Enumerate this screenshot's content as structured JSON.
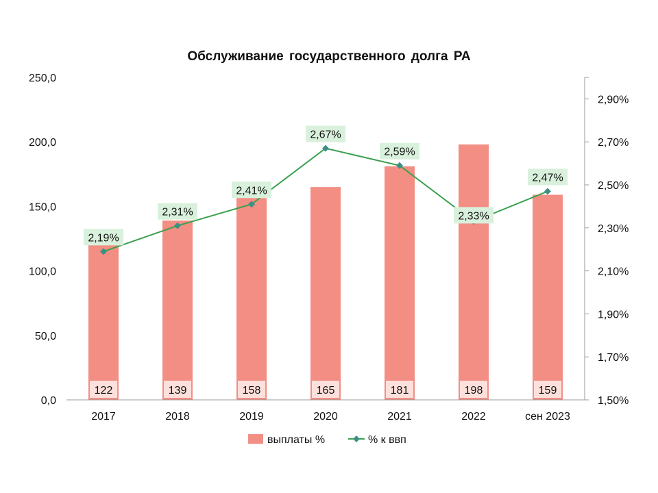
{
  "chart_data": {
    "type": "bar",
    "title": "Обслуживание  государственного  долга РА",
    "categories": [
      "2017",
      "2018",
      "2019",
      "2020",
      "2021",
      "2022",
      "сен 2023"
    ],
    "series": [
      {
        "name": "выплаты %",
        "type": "bar",
        "axis": "left",
        "values": [
          122,
          139,
          158,
          165,
          181,
          198,
          159
        ],
        "value_labels": [
          "122",
          "139",
          "158",
          "165",
          "181",
          "198",
          "159"
        ]
      },
      {
        "name": "% к ввп",
        "type": "line",
        "axis": "right",
        "values": [
          2.19,
          2.31,
          2.41,
          2.67,
          2.59,
          2.33,
          2.47
        ],
        "value_labels": [
          "2,19%",
          "2,31%",
          "2,41%",
          "2,67%",
          "2,59%",
          "2,33%",
          "2,47%"
        ]
      }
    ],
    "yaxis_left": {
      "ylim": [
        0,
        250
      ],
      "ticks": [
        0,
        50,
        100,
        150,
        200,
        250
      ],
      "tick_labels": [
        "0,0",
        "50,0",
        "100,0",
        "150,0",
        "200,0",
        "250,0"
      ]
    },
    "yaxis_right": {
      "ylim": [
        1.5,
        3.0
      ],
      "ticks": [
        1.5,
        1.7,
        1.9,
        2.1,
        2.3,
        2.5,
        2.7,
        2.9
      ],
      "tick_labels": [
        "1,50%",
        "1,70%",
        "1,90%",
        "2,10%",
        "2,30%",
        "2,50%",
        "2,70%",
        "2,90%"
      ]
    },
    "grid": false,
    "legend_position": "bottom",
    "colors": {
      "bar": "#f28e84",
      "bar_label_bg": "#fde0dc",
      "line": "#3aa04e",
      "marker": "#3d8f86",
      "line_label_bg": "#d9f1dc"
    }
  }
}
